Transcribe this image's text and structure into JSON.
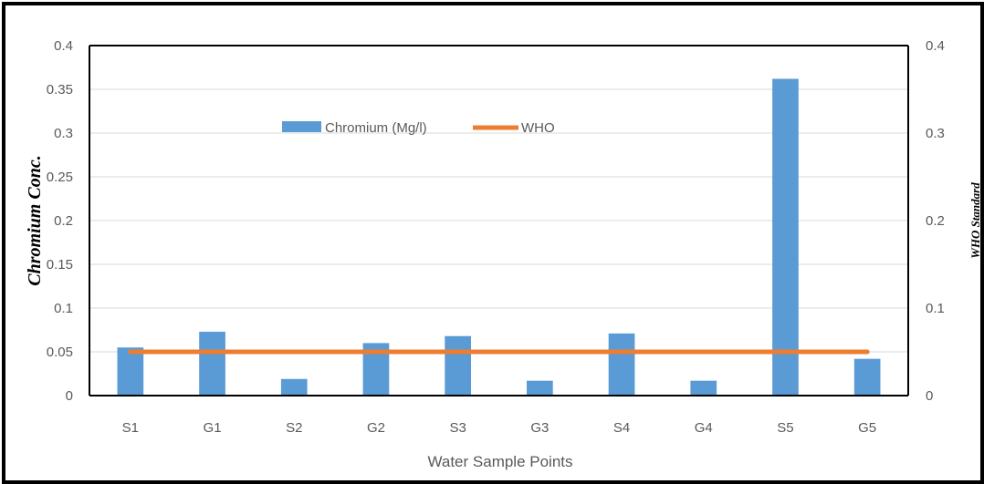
{
  "chart_data": {
    "type": "bar",
    "title": "",
    "xlabel": "Water Sample Points",
    "ylabel": "Chromium Conc.",
    "y2label": "WHO Standard",
    "categories": [
      "S1",
      "G1",
      "S2",
      "G2",
      "S3",
      "G3",
      "S4",
      "G4",
      "S5",
      "G5"
    ],
    "series": [
      {
        "name": "Chromium (Mg/l)",
        "type": "bar",
        "axis": "left",
        "color": "#5B9BD5",
        "values": [
          0.055,
          0.073,
          0.019,
          0.06,
          0.068,
          0.017,
          0.071,
          0.017,
          0.362,
          0.042
        ]
      },
      {
        "name": "WHO",
        "type": "line",
        "axis": "right",
        "color": "#ED7D31",
        "values": [
          0.05,
          0.05,
          0.05,
          0.05,
          0.05,
          0.05,
          0.05,
          0.05,
          0.05,
          0.05
        ]
      }
    ],
    "ylim": [
      0,
      0.4
    ],
    "y_ticks": [
      "0",
      "0.05",
      "0.1",
      "0.15",
      "0.2",
      "0.25",
      "0.3",
      "0.35",
      "0.4"
    ],
    "y2lim": [
      0,
      0.4
    ],
    "y2_ticks": [
      "0",
      "0.1",
      "0.2",
      "0.3",
      "0.4"
    ],
    "grid": true,
    "legend_position": "top-center"
  }
}
